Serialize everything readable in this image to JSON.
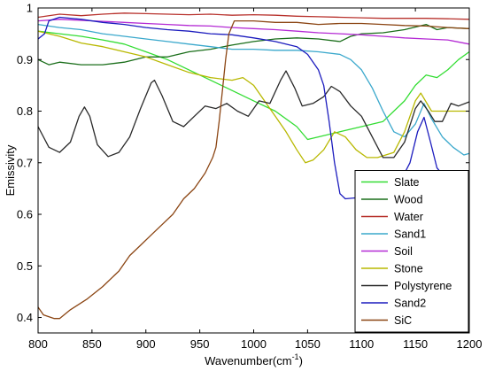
{
  "chart_data": {
    "type": "line",
    "xlabel": "Wavenumber(cm",
    "xlabel_sup": "-1",
    "xlabel_suffix": ")",
    "ylabel": "Emissivity",
    "xlim": [
      800,
      1200
    ],
    "ylim": [
      0.37,
      1.0
    ],
    "xticks": [
      800,
      850,
      900,
      950,
      1000,
      1050,
      1100,
      1150,
      1200
    ],
    "yticks": [
      0.4,
      0.5,
      0.6,
      0.7,
      0.8,
      0.9,
      1
    ],
    "ytick_labels": [
      "0.4",
      "0.5",
      "0.6",
      "0.7",
      "0.8",
      "0.9",
      "1"
    ],
    "grid": false,
    "legend_position": "bottom-right",
    "series": [
      {
        "name": "Slate",
        "color": "#33dd33",
        "points": [
          [
            800,
            0.955
          ],
          [
            820,
            0.95
          ],
          [
            840,
            0.945
          ],
          [
            860,
            0.938
          ],
          [
            880,
            0.93
          ],
          [
            900,
            0.915
          ],
          [
            920,
            0.9
          ],
          [
            940,
            0.88
          ],
          [
            960,
            0.86
          ],
          [
            980,
            0.84
          ],
          [
            1000,
            0.82
          ],
          [
            1020,
            0.8
          ],
          [
            1040,
            0.77
          ],
          [
            1050,
            0.745
          ],
          [
            1060,
            0.75
          ],
          [
            1080,
            0.76
          ],
          [
            1100,
            0.77
          ],
          [
            1120,
            0.78
          ],
          [
            1140,
            0.82
          ],
          [
            1150,
            0.85
          ],
          [
            1160,
            0.87
          ],
          [
            1170,
            0.865
          ],
          [
            1180,
            0.88
          ],
          [
            1190,
            0.9
          ],
          [
            1200,
            0.915
          ]
        ]
      },
      {
        "name": "Wood",
        "color": "#1a6e1a",
        "points": [
          [
            800,
            0.9
          ],
          [
            810,
            0.89
          ],
          [
            820,
            0.895
          ],
          [
            840,
            0.89
          ],
          [
            860,
            0.89
          ],
          [
            880,
            0.895
          ],
          [
            900,
            0.905
          ],
          [
            920,
            0.905
          ],
          [
            940,
            0.915
          ],
          [
            960,
            0.92
          ],
          [
            980,
            0.928
          ],
          [
            1000,
            0.935
          ],
          [
            1020,
            0.94
          ],
          [
            1040,
            0.942
          ],
          [
            1060,
            0.94
          ],
          [
            1080,
            0.935
          ],
          [
            1090,
            0.945
          ],
          [
            1100,
            0.95
          ],
          [
            1120,
            0.952
          ],
          [
            1140,
            0.958
          ],
          [
            1160,
            0.968
          ],
          [
            1170,
            0.958
          ],
          [
            1180,
            0.962
          ],
          [
            1200,
            0.96
          ]
        ]
      },
      {
        "name": "Water",
        "color": "#b8322d",
        "points": [
          [
            800,
            0.982
          ],
          [
            820,
            0.988
          ],
          [
            840,
            0.985
          ],
          [
            860,
            0.988
          ],
          [
            880,
            0.99
          ],
          [
            900,
            0.989
          ],
          [
            920,
            0.988
          ],
          [
            940,
            0.987
          ],
          [
            960,
            0.988
          ],
          [
            980,
            0.986
          ],
          [
            1000,
            0.987
          ],
          [
            1020,
            0.986
          ],
          [
            1040,
            0.984
          ],
          [
            1060,
            0.983
          ],
          [
            1080,
            0.982
          ],
          [
            1100,
            0.981
          ],
          [
            1120,
            0.98
          ],
          [
            1140,
            0.98
          ],
          [
            1160,
            0.98
          ],
          [
            1180,
            0.979
          ],
          [
            1200,
            0.978
          ]
        ]
      },
      {
        "name": "Sand1",
        "color": "#3aa8cc",
        "points": [
          [
            800,
            0.968
          ],
          [
            820,
            0.962
          ],
          [
            840,
            0.958
          ],
          [
            860,
            0.95
          ],
          [
            880,
            0.945
          ],
          [
            900,
            0.94
          ],
          [
            920,
            0.935
          ],
          [
            940,
            0.93
          ],
          [
            960,
            0.925
          ],
          [
            980,
            0.92
          ],
          [
            1000,
            0.92
          ],
          [
            1020,
            0.918
          ],
          [
            1040,
            0.918
          ],
          [
            1060,
            0.915
          ],
          [
            1080,
            0.91
          ],
          [
            1090,
            0.9
          ],
          [
            1100,
            0.88
          ],
          [
            1110,
            0.845
          ],
          [
            1120,
            0.8
          ],
          [
            1130,
            0.76
          ],
          [
            1140,
            0.75
          ],
          [
            1150,
            0.775
          ],
          [
            1158,
            0.815
          ],
          [
            1165,
            0.785
          ],
          [
            1175,
            0.75
          ],
          [
            1185,
            0.73
          ],
          [
            1195,
            0.715
          ],
          [
            1200,
            0.718
          ]
        ]
      },
      {
        "name": "Soil",
        "color": "#b42ad4",
        "points": [
          [
            800,
            0.975
          ],
          [
            820,
            0.978
          ],
          [
            840,
            0.976
          ],
          [
            860,
            0.974
          ],
          [
            880,
            0.972
          ],
          [
            900,
            0.97
          ],
          [
            920,
            0.968
          ],
          [
            940,
            0.966
          ],
          [
            960,
            0.965
          ],
          [
            980,
            0.962
          ],
          [
            1000,
            0.96
          ],
          [
            1020,
            0.958
          ],
          [
            1040,
            0.955
          ],
          [
            1060,
            0.952
          ],
          [
            1080,
            0.95
          ],
          [
            1100,
            0.948
          ],
          [
            1120,
            0.945
          ],
          [
            1140,
            0.942
          ],
          [
            1160,
            0.94
          ],
          [
            1180,
            0.938
          ],
          [
            1200,
            0.93
          ]
        ]
      },
      {
        "name": "Stone",
        "color": "#b8b800",
        "points": [
          [
            800,
            0.955
          ],
          [
            820,
            0.945
          ],
          [
            840,
            0.932
          ],
          [
            860,
            0.925
          ],
          [
            880,
            0.915
          ],
          [
            900,
            0.905
          ],
          [
            920,
            0.89
          ],
          [
            940,
            0.875
          ],
          [
            960,
            0.865
          ],
          [
            980,
            0.86
          ],
          [
            990,
            0.865
          ],
          [
            1000,
            0.85
          ],
          [
            1010,
            0.82
          ],
          [
            1020,
            0.79
          ],
          [
            1030,
            0.76
          ],
          [
            1040,
            0.725
          ],
          [
            1048,
            0.7
          ],
          [
            1055,
            0.705
          ],
          [
            1065,
            0.725
          ],
          [
            1075,
            0.76
          ],
          [
            1085,
            0.75
          ],
          [
            1095,
            0.725
          ],
          [
            1105,
            0.71
          ],
          [
            1115,
            0.71
          ],
          [
            1130,
            0.72
          ],
          [
            1140,
            0.76
          ],
          [
            1150,
            0.82
          ],
          [
            1155,
            0.835
          ],
          [
            1165,
            0.8
          ],
          [
            1180,
            0.8
          ],
          [
            1200,
            0.8
          ]
        ]
      },
      {
        "name": "Polystyrene",
        "color": "#2a2a2a",
        "points": [
          [
            800,
            0.77
          ],
          [
            810,
            0.73
          ],
          [
            820,
            0.72
          ],
          [
            830,
            0.74
          ],
          [
            838,
            0.79
          ],
          [
            843,
            0.808
          ],
          [
            848,
            0.79
          ],
          [
            855,
            0.735
          ],
          [
            865,
            0.712
          ],
          [
            875,
            0.72
          ],
          [
            885,
            0.75
          ],
          [
            895,
            0.805
          ],
          [
            905,
            0.855
          ],
          [
            908,
            0.86
          ],
          [
            915,
            0.83
          ],
          [
            925,
            0.78
          ],
          [
            935,
            0.77
          ],
          [
            945,
            0.79
          ],
          [
            955,
            0.81
          ],
          [
            965,
            0.805
          ],
          [
            975,
            0.815
          ],
          [
            985,
            0.8
          ],
          [
            995,
            0.79
          ],
          [
            1005,
            0.82
          ],
          [
            1015,
            0.815
          ],
          [
            1025,
            0.86
          ],
          [
            1030,
            0.878
          ],
          [
            1038,
            0.845
          ],
          [
            1045,
            0.81
          ],
          [
            1055,
            0.815
          ],
          [
            1065,
            0.828
          ],
          [
            1072,
            0.848
          ],
          [
            1080,
            0.838
          ],
          [
            1090,
            0.81
          ],
          [
            1100,
            0.79
          ],
          [
            1110,
            0.75
          ],
          [
            1120,
            0.71
          ],
          [
            1130,
            0.71
          ],
          [
            1140,
            0.74
          ],
          [
            1150,
            0.805
          ],
          [
            1155,
            0.82
          ],
          [
            1162,
            0.8
          ],
          [
            1168,
            0.78
          ],
          [
            1175,
            0.78
          ],
          [
            1183,
            0.815
          ],
          [
            1190,
            0.81
          ],
          [
            1200,
            0.818
          ]
        ]
      },
      {
        "name": "Sand2",
        "color": "#1c1cbe",
        "points": [
          [
            800,
            0.94
          ],
          [
            806,
            0.95
          ],
          [
            810,
            0.975
          ],
          [
            820,
            0.982
          ],
          [
            840,
            0.978
          ],
          [
            860,
            0.972
          ],
          [
            880,
            0.968
          ],
          [
            900,
            0.962
          ],
          [
            920,
            0.958
          ],
          [
            940,
            0.955
          ],
          [
            960,
            0.95
          ],
          [
            980,
            0.948
          ],
          [
            1000,
            0.942
          ],
          [
            1020,
            0.935
          ],
          [
            1040,
            0.925
          ],
          [
            1050,
            0.91
          ],
          [
            1060,
            0.88
          ],
          [
            1065,
            0.85
          ],
          [
            1070,
            0.78
          ],
          [
            1075,
            0.7
          ],
          [
            1080,
            0.64
          ],
          [
            1085,
            0.63
          ],
          [
            1095,
            0.632
          ],
          [
            1105,
            0.635
          ],
          [
            1115,
            0.645
          ],
          [
            1125,
            0.65
          ],
          [
            1135,
            0.66
          ],
          [
            1145,
            0.7
          ],
          [
            1152,
            0.76
          ],
          [
            1158,
            0.788
          ],
          [
            1164,
            0.74
          ],
          [
            1170,
            0.69
          ],
          [
            1180,
            0.665
          ],
          [
            1190,
            0.658
          ],
          [
            1200,
            0.655
          ]
        ]
      },
      {
        "name": "SiC",
        "color": "#8b4513",
        "points": [
          [
            800,
            0.42
          ],
          [
            805,
            0.405
          ],
          [
            815,
            0.398
          ],
          [
            820,
            0.398
          ],
          [
            830,
            0.415
          ],
          [
            845,
            0.435
          ],
          [
            860,
            0.46
          ],
          [
            875,
            0.49
          ],
          [
            885,
            0.52
          ],
          [
            895,
            0.54
          ],
          [
            905,
            0.56
          ],
          [
            915,
            0.58
          ],
          [
            925,
            0.6
          ],
          [
            935,
            0.63
          ],
          [
            945,
            0.65
          ],
          [
            955,
            0.68
          ],
          [
            962,
            0.71
          ],
          [
            965,
            0.73
          ],
          [
            968,
            0.78
          ],
          [
            971,
            0.84
          ],
          [
            974,
            0.9
          ],
          [
            977,
            0.95
          ],
          [
            982,
            0.975
          ],
          [
            1000,
            0.975
          ],
          [
            1020,
            0.972
          ],
          [
            1040,
            0.972
          ],
          [
            1060,
            0.968
          ],
          [
            1080,
            0.97
          ],
          [
            1100,
            0.97
          ],
          [
            1120,
            0.968
          ],
          [
            1140,
            0.966
          ],
          [
            1160,
            0.965
          ],
          [
            1180,
            0.962
          ],
          [
            1200,
            0.96
          ]
        ]
      }
    ]
  }
}
